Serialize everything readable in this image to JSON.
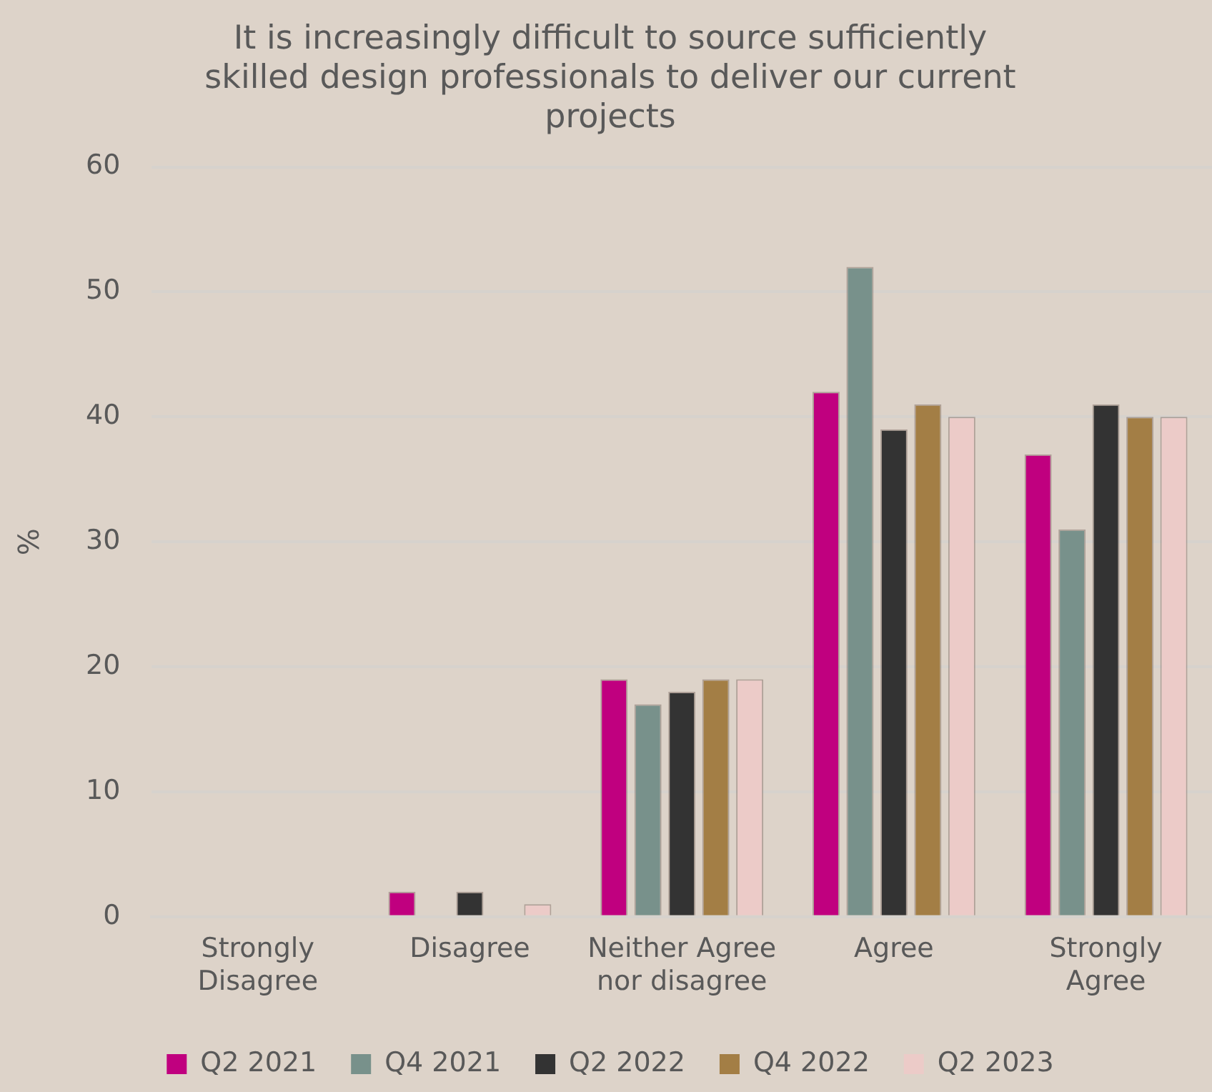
{
  "chart_data": {
    "type": "bar",
    "title": "It is increasingly difficult to source sufficiently skilled design professionals to deliver our current projects",
    "ylabel": "%",
    "categories": [
      "Strongly Disagree",
      "Disagree",
      "Neither Agree nor disagree",
      "Agree",
      "Strongly Agree"
    ],
    "series": [
      {
        "name": "Q2 2021",
        "color": "#c0007f",
        "values": [
          0,
          2,
          19,
          42,
          37
        ]
      },
      {
        "name": "Q4 2021",
        "color": "#78918b",
        "values": [
          0,
          0,
          17,
          52,
          31
        ]
      },
      {
        "name": "Q2 2022",
        "color": "#333333",
        "values": [
          0,
          2,
          18,
          39,
          41
        ]
      },
      {
        "name": "Q4 2022",
        "color": "#a37e45",
        "values": [
          0,
          0,
          19,
          41,
          40
        ]
      },
      {
        "name": "Q2 2023",
        "color": "#eccbc8",
        "values": [
          0,
          1,
          19,
          40,
          40
        ]
      }
    ],
    "ylim": [
      0,
      60
    ],
    "yticks": [
      0,
      10,
      20,
      30,
      40,
      50,
      60
    ],
    "grid": "y",
    "legend": "bottom"
  }
}
